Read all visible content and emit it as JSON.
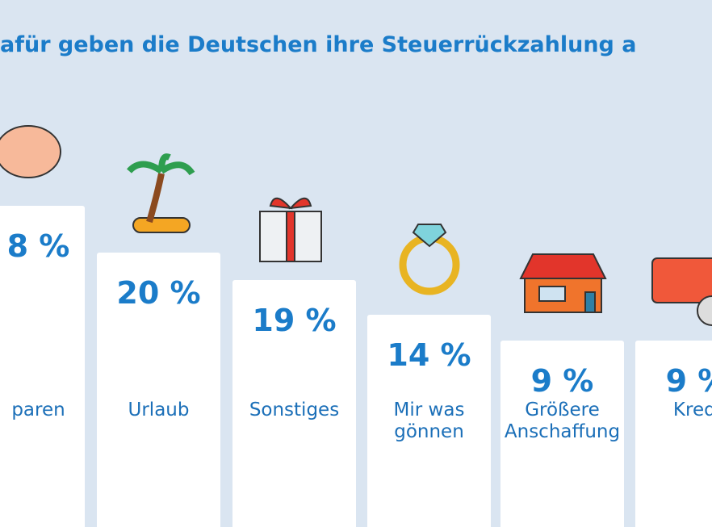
{
  "header": {
    "title": "afür geben die Deutschen ihre Steuerrückzahlung a"
  },
  "columns": [
    {
      "value": "8 %",
      "label": [
        "paren"
      ]
    },
    {
      "value": "20 %",
      "label": [
        "Urlaub"
      ]
    },
    {
      "value": "19 %",
      "label": [
        "Sonstiges"
      ]
    },
    {
      "value": "14 %",
      "label": [
        "Mir was",
        "gönnen"
      ]
    },
    {
      "value": "9 %",
      "label": [
        "Größere",
        "Anschaffung"
      ]
    },
    {
      "value": "9 %",
      "label": [
        "Kredi"
      ]
    }
  ]
}
